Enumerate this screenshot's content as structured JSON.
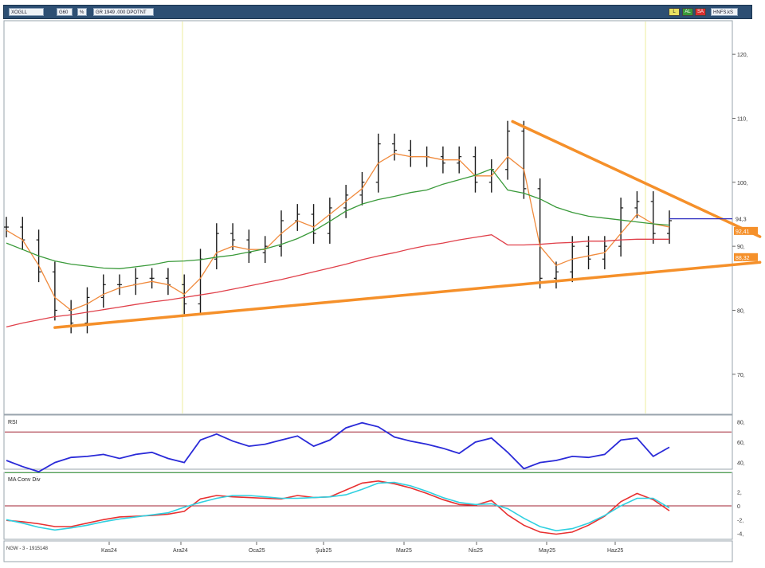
{
  "toolbar": {
    "symbol": "XOGLL",
    "period": "G60",
    "type": "%",
    "range": "GR 1949 .000 DPOTNT",
    "right_field": "HNFS.kS",
    "btn_a": "L",
    "btn_b": "AL",
    "btn_c": "SA"
  },
  "colors": {
    "price": "#1a1a1a",
    "ma_fast": "#f08a3c",
    "ma_mid": "#3a9a3a",
    "ma_slow": "#e0404a",
    "trendline": "#f5902a",
    "rsi": "#2a2ad8",
    "macd": "#e83030",
    "signal": "#30d0e0",
    "hline_blue": "#3030c0"
  },
  "chart_data": [
    {
      "type": "line",
      "panel": "price",
      "ylim": [
        64,
        125
      ],
      "y_ticks": [
        70,
        80,
        90,
        100,
        110,
        120
      ],
      "y_tick_labels": [
        "70,",
        "80,",
        "90,",
        "100,",
        "110,",
        "120,"
      ],
      "x_labels": [
        "Kas24",
        "Ara24",
        "Oca25",
        "Şub25",
        "Mar25",
        "Nis25",
        "May25",
        "Haz25"
      ],
      "x_points": 42,
      "series": [
        {
          "key": "price",
          "values": [
            93,
            91,
            86,
            80,
            78,
            82,
            84,
            84,
            85,
            85,
            84,
            81,
            88,
            92,
            91,
            89,
            90,
            94,
            95,
            92,
            96,
            98,
            100,
            106,
            105,
            104,
            104,
            103,
            104,
            100,
            102,
            108,
            99,
            85,
            86,
            90,
            88,
            90,
            96,
            97,
            92,
            94
          ]
        },
        {
          "key": "ma_fast",
          "values": [
            92.5,
            91,
            87,
            82,
            80,
            81,
            82.5,
            83.5,
            84,
            84.5,
            84,
            82.5,
            85,
            89,
            90,
            89.5,
            89.5,
            92,
            94,
            93,
            95,
            97,
            99,
            103,
            104.5,
            104,
            104,
            103.5,
            103.5,
            101,
            101,
            104,
            102,
            90,
            87,
            88,
            88.5,
            89,
            92,
            95,
            93.5,
            93
          ]
        },
        {
          "key": "ma_mid",
          "values": [
            90.5,
            89.5,
            88.5,
            87.7,
            87.2,
            86.9,
            86.6,
            86.5,
            86.8,
            87.1,
            87.6,
            87.7,
            87.9,
            88.3,
            88.6,
            89.1,
            89.6,
            90.3,
            91.2,
            92.4,
            93.9,
            95.5,
            96.6,
            97.3,
            97.8,
            98.4,
            98.8,
            99.7,
            100.4,
            101.1,
            102.1,
            98.8,
            98.3,
            97.4,
            96.1,
            95.3,
            94.7,
            94.4,
            94.1,
            93.8,
            93.5,
            93.3
          ]
        },
        {
          "key": "ma_slow",
          "values": [
            77.4,
            78.0,
            78.5,
            79.0,
            79.3,
            79.7,
            80.1,
            80.5,
            80.9,
            81.3,
            81.6,
            82.0,
            82.4,
            82.8,
            83.3,
            83.8,
            84.3,
            84.8,
            85.4,
            86.0,
            86.6,
            87.2,
            87.9,
            88.5,
            89.0,
            89.6,
            90.1,
            90.5,
            91.0,
            91.4,
            91.8,
            90.2,
            90.2,
            90.3,
            90.5,
            90.6,
            90.8,
            90.8,
            91.0,
            91.1,
            91.1,
            91.1
          ]
        }
      ],
      "trendlines": [
        {
          "key": "resistance",
          "from": [
            31.3,
            109.5
          ],
          "to": [
            46.6,
            91.5
          ]
        },
        {
          "key": "support",
          "from": [
            3,
            77.3
          ],
          "to": [
            46.6,
            87.5
          ]
        }
      ],
      "annotations": [
        {
          "label": "94,3",
          "value": 94.3,
          "style": "plain"
        },
        {
          "label": "92,41",
          "value": 92.4,
          "style": "orange-tag"
        },
        {
          "label": "88,32",
          "value": 88.3,
          "style": "orange-tag"
        }
      ],
      "hline_blue": 94.3
    },
    {
      "type": "line",
      "panel": "rsi",
      "title": "RSI",
      "ylim": [
        35,
        85
      ],
      "levels": [
        70,
        30
      ],
      "y_tick_labels": [
        "80,",
        "60,",
        "40,"
      ],
      "y_tick_values": [
        80,
        60,
        40
      ],
      "values": [
        42,
        36,
        31,
        40,
        45,
        46,
        48,
        44,
        48,
        50,
        44,
        40,
        62,
        68,
        61,
        56,
        58,
        62,
        66,
        56,
        62,
        74,
        79,
        75,
        65,
        61,
        58,
        54,
        49,
        60,
        64,
        50,
        34,
        40,
        42,
        46,
        45,
        48,
        62,
        64,
        46,
        55
      ]
    },
    {
      "type": "line",
      "panel": "macd",
      "title": "MA Conv Div",
      "ylim": [
        -4.5,
        4.5
      ],
      "y_tick_labels": [
        "2,",
        "0",
        "-2,",
        "-4,"
      ],
      "y_tick_values": [
        2,
        0,
        -2,
        -4
      ],
      "zero_line": 0,
      "series": [
        {
          "key": "macd",
          "values": [
            -2.1,
            -2.3,
            -2.6,
            -3.0,
            -3.0,
            -2.5,
            -2.0,
            -1.6,
            -1.5,
            -1.4,
            -1.2,
            -0.8,
            1.0,
            1.5,
            1.3,
            1.2,
            1.1,
            1.0,
            1.5,
            1.2,
            1.3,
            2.3,
            3.3,
            3.6,
            3.2,
            2.6,
            1.8,
            0.9,
            0.2,
            0.1,
            0.8,
            -1.3,
            -2.8,
            -3.8,
            -4.1,
            -3.8,
            -2.8,
            -1.5,
            0.6,
            1.8,
            0.9,
            -0.7
          ]
        },
        {
          "key": "signal",
          "values": [
            -2.0,
            -2.5,
            -3.1,
            -3.5,
            -3.2,
            -2.8,
            -2.3,
            -1.9,
            -1.6,
            -1.3,
            -1.0,
            -0.2,
            0.5,
            1.1,
            1.5,
            1.5,
            1.3,
            1.1,
            1.1,
            1.2,
            1.3,
            1.6,
            2.4,
            3.3,
            3.4,
            2.9,
            2.1,
            1.2,
            0.5,
            0.2,
            0.3,
            -0.4,
            -1.8,
            -3.0,
            -3.6,
            -3.3,
            -2.5,
            -1.4,
            0.0,
            1.1,
            1.1,
            -0.3
          ]
        }
      ]
    }
  ],
  "footer": {
    "left_label": "NGW - 3 - 1915148",
    "x_labels": [
      "Kas24",
      "Ara24",
      "Oca25",
      "Şub25",
      "Mar25",
      "Nis25",
      "May25",
      "Haz25"
    ]
  }
}
